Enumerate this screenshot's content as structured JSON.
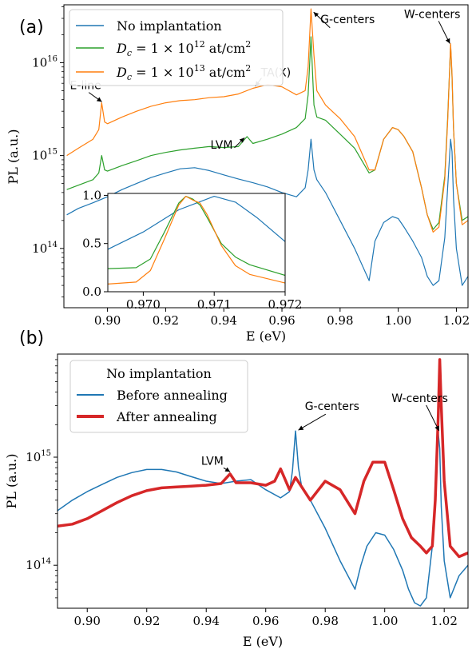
{
  "figure": {
    "panel_a_label": "(a)",
    "panel_b_label": "(b)"
  },
  "chart_data": [
    {
      "id": "a",
      "type": "line",
      "xlabel": "E (eV)",
      "ylabel": "PL (a.u.)",
      "xlim": [
        0.885,
        1.024
      ],
      "ylim": [
        23000000000000.0,
        4.2e+16
      ],
      "yscale": "log",
      "grid": false,
      "legend_position": "top-left",
      "xticks": [
        0.9,
        0.92,
        0.94,
        0.96,
        0.98,
        1.0,
        1.02
      ],
      "xtick_labels": [
        "0.90",
        "0.92",
        "0.94",
        "0.96",
        "0.98",
        "1.00",
        "1.02"
      ],
      "yticks": [
        100000000000000.0,
        1000000000000000.0,
        1e+16
      ],
      "ytick_labels": [
        [
          "10",
          "14"
        ],
        [
          "10",
          "15"
        ],
        [
          "10",
          "16"
        ]
      ],
      "series": [
        {
          "name": "No implantation",
          "color": "#1f77b4",
          "width": 1.2,
          "x": [
            0.886,
            0.89,
            0.895,
            0.9,
            0.905,
            0.91,
            0.915,
            0.92,
            0.925,
            0.93,
            0.935,
            0.94,
            0.945,
            0.95,
            0.955,
            0.96,
            0.965,
            0.968,
            0.969,
            0.97,
            0.971,
            0.972,
            0.975,
            0.98,
            0.985,
            0.99,
            0.992,
            0.995,
            0.998,
            1.0,
            1.002,
            1.005,
            1.008,
            1.01,
            1.012,
            1.014,
            1.016,
            1.017,
            1.018,
            1.0185,
            1.019,
            1.02,
            1.022,
            1.024
          ],
          "y": [
            230000000000000.0,
            270000000000000.0,
            310000000000000.0,
            360000000000000.0,
            430000000000000.0,
            500000000000000.0,
            580000000000000.0,
            650000000000000.0,
            720000000000000.0,
            740000000000000.0,
            690000000000000.0,
            620000000000000.0,
            560000000000000.0,
            510000000000000.0,
            460000000000000.0,
            400000000000000.0,
            360000000000000.0,
            450000000000000.0,
            700000000000000.0,
            1500000000000000.0,
            700000000000000.0,
            550000000000000.0,
            400000000000000.0,
            200000000000000.0,
            100000000000000.0,
            45000000000000.0,
            120000000000000.0,
            190000000000000.0,
            220000000000000.0,
            210000000000000.0,
            170000000000000.0,
            120000000000000.0,
            80000000000000.0,
            50000000000000.0,
            40000000000000.0,
            45000000000000.0,
            130000000000000.0,
            450000000000000.0,
            1500000000000000.0,
            1100000000000000.0,
            350000000000000.0,
            100000000000000.0,
            40000000000000.0,
            50000000000000.0
          ]
        },
        {
          "name": "D_c = 1 × 10^12 at/cm^2",
          "color": "#2ca02c",
          "width": 1.2,
          "x": [
            0.886,
            0.89,
            0.895,
            0.897,
            0.898,
            0.899,
            0.9,
            0.905,
            0.91,
            0.915,
            0.92,
            0.925,
            0.93,
            0.935,
            0.94,
            0.945,
            0.948,
            0.95,
            0.955,
            0.96,
            0.965,
            0.968,
            0.969,
            0.97,
            0.971,
            0.972,
            0.975,
            0.98,
            0.985,
            0.99,
            0.992,
            0.995,
            0.998,
            1.0,
            1.002,
            1.005,
            1.008,
            1.01,
            1.012,
            1.014,
            1.016,
            1.017,
            1.018,
            1.0185,
            1.019,
            1.02,
            1.022,
            1.024
          ],
          "y": [
            430000000000000.0,
            480000000000000.0,
            550000000000000.0,
            650000000000000.0,
            1000000000000000.0,
            700000000000000.0,
            680000000000000.0,
            780000000000000.0,
            880000000000000.0,
            1000000000000000.0,
            1080000000000000.0,
            1150000000000000.0,
            1200000000000000.0,
            1250000000000000.0,
            1220000000000000.0,
            1250000000000000.0,
            1600000000000000.0,
            1350000000000000.0,
            1500000000000000.0,
            1700000000000000.0,
            2000000000000000.0,
            2500000000000000.0,
            4500000000000000.0,
            1.9e+16,
            3500000000000000.0,
            2600000000000000.0,
            2400000000000000.0,
            1700000000000000.0,
            1200000000000000.0,
            650000000000000.0,
            700000000000000.0,
            1500000000000000.0,
            2000000000000000.0,
            1900000000000000.0,
            1600000000000000.0,
            1100000000000000.0,
            450000000000000.0,
            230000000000000.0,
            160000000000000.0,
            190000000000000.0,
            600000000000000.0,
            2500000000000000.0,
            1.55e+16,
            7000000000000000.0,
            2000000000000000.0,
            500000000000000.0,
            200000000000000.0,
            220000000000000.0
          ]
        },
        {
          "name": "D_c = 1 × 10^13 at/cm^2",
          "color": "#ff7f0e",
          "width": 1.2,
          "x": [
            0.886,
            0.89,
            0.895,
            0.897,
            0.898,
            0.899,
            0.9,
            0.905,
            0.91,
            0.915,
            0.92,
            0.925,
            0.93,
            0.935,
            0.94,
            0.945,
            0.95,
            0.955,
            0.96,
            0.965,
            0.968,
            0.969,
            0.97,
            0.971,
            0.972,
            0.975,
            0.98,
            0.985,
            0.99,
            0.992,
            0.995,
            0.998,
            1.0,
            1.002,
            1.005,
            1.008,
            1.01,
            1.012,
            1.014,
            1.016,
            1.017,
            1.018,
            1.0185,
            1.019,
            1.02,
            1.022,
            1.024
          ],
          "y": [
            1000000000000000.0,
            1200000000000000.0,
            1500000000000000.0,
            1900000000000000.0,
            3700000000000000.0,
            2300000000000000.0,
            2200000000000000.0,
            2600000000000000.0,
            3000000000000000.0,
            3400000000000000.0,
            3700000000000000.0,
            3900000000000000.0,
            4000000000000000.0,
            4200000000000000.0,
            4300000000000000.0,
            4600000000000000.0,
            5300000000000000.0,
            5800000000000000.0,
            5500000000000000.0,
            4500000000000000.0,
            5000000000000000.0,
            9000000000000000.0,
            3.8e+16,
            1.2e+16,
            5000000000000000.0,
            3500000000000000.0,
            2500000000000000.0,
            1600000000000000.0,
            700000000000000.0,
            700000000000000.0,
            1500000000000000.0,
            2000000000000000.0,
            1900000000000000.0,
            1600000000000000.0,
            1100000000000000.0,
            450000000000000.0,
            230000000000000.0,
            150000000000000.0,
            170000000000000.0,
            550000000000000.0,
            2300000000000000.0,
            1.6e+16,
            7500000000000000.0,
            2000000000000000.0,
            500000000000000.0,
            180000000000000.0,
            200000000000000.0
          ]
        }
      ],
      "annotations": [
        {
          "text": "E-line",
          "x": 0.8985,
          "y": 3700000000000000.0
        },
        {
          "text": "TA(X)",
          "x": 0.9505,
          "y": 5400000000000000.0
        },
        {
          "text": "LVM",
          "x": 0.9475,
          "y": 1600000000000000.0
        },
        {
          "text": "G-centers",
          "x": 0.9705,
          "y": 3.6e+16
        },
        {
          "text": "W-centers",
          "x": 1.018,
          "y": 1.55e+16
        }
      ],
      "inset": {
        "type": "line",
        "xlim": [
          0.9695,
          0.972
        ],
        "ylim": [
          0.0,
          1.02
        ],
        "xticks": [
          0.97,
          0.971,
          0.972
        ],
        "xtick_labels": [
          "0.970",
          "0.971",
          "0.972"
        ],
        "yticks": [
          0.0,
          0.5,
          1.0
        ],
        "ytick_labels": [
          "0.0",
          "0.5",
          "1.0"
        ],
        "series": [
          {
            "color": "#1f77b4",
            "x": [
              0.9695,
              0.97,
              0.9705,
              0.971,
              0.9713,
              0.9716,
              0.972
            ],
            "y": [
              0.44,
              0.62,
              0.85,
              0.99,
              0.93,
              0.77,
              0.52
            ]
          },
          {
            "color": "#2ca02c",
            "x": [
              0.9695,
              0.9699,
              0.9701,
              0.9703,
              0.9705,
              0.9706,
              0.9707,
              0.9708,
              0.9709,
              0.9711,
              0.9713,
              0.9715,
              0.972
            ],
            "y": [
              0.24,
              0.25,
              0.34,
              0.62,
              0.92,
              0.99,
              0.96,
              0.9,
              0.77,
              0.5,
              0.36,
              0.28,
              0.17
            ]
          },
          {
            "color": "#ff7f0e",
            "x": [
              0.9695,
              0.9699,
              0.9701,
              0.9703,
              0.9705,
              0.9706,
              0.9707,
              0.9708,
              0.9709,
              0.9711,
              0.9713,
              0.9715,
              0.972
            ],
            "y": [
              0.08,
              0.1,
              0.22,
              0.55,
              0.9,
              0.99,
              0.95,
              0.92,
              0.8,
              0.48,
              0.27,
              0.18,
              0.09
            ]
          }
        ]
      }
    },
    {
      "id": "b",
      "type": "line",
      "xlabel": "E (eV)",
      "ylabel": "PL (a.u.)",
      "xlim": [
        0.89,
        1.028
      ],
      "ylim": [
        40000000000000.0,
        9000000000000000.0
      ],
      "yscale": "log",
      "grid": false,
      "legend_position": "top-left",
      "legend_title": "No implantation",
      "xticks": [
        0.9,
        0.92,
        0.94,
        0.96,
        0.98,
        1.0,
        1.02
      ],
      "xtick_labels": [
        "0.90",
        "0.92",
        "0.94",
        "0.96",
        "0.98",
        "1.00",
        "1.02"
      ],
      "yticks": [
        100000000000000.0,
        1000000000000000.0
      ],
      "ytick_labels": [
        [
          "10",
          "14"
        ],
        [
          "10",
          "15"
        ]
      ],
      "series": [
        {
          "name": "Before annealing",
          "color": "#1f77b4",
          "width": 1.5,
          "x": [
            0.89,
            0.895,
            0.9,
            0.905,
            0.91,
            0.915,
            0.92,
            0.925,
            0.93,
            0.935,
            0.94,
            0.945,
            0.95,
            0.955,
            0.96,
            0.965,
            0.968,
            0.969,
            0.97,
            0.971,
            0.972,
            0.975,
            0.98,
            0.985,
            0.99,
            0.992,
            0.994,
            0.997,
            1.0,
            1.003,
            1.006,
            1.008,
            1.01,
            1.012,
            1.014,
            1.016,
            1.017,
            1.018,
            1.0185,
            1.019,
            1.02,
            1.022,
            1.025,
            1.028
          ],
          "y": [
            320000000000000.0,
            400000000000000.0,
            480000000000000.0,
            560000000000000.0,
            650000000000000.0,
            720000000000000.0,
            770000000000000.0,
            770000000000000.0,
            730000000000000.0,
            660000000000000.0,
            600000000000000.0,
            570000000000000.0,
            600000000000000.0,
            620000000000000.0,
            500000000000000.0,
            420000000000000.0,
            480000000000000.0,
            750000000000000.0,
            1750000000000000.0,
            800000000000000.0,
            550000000000000.0,
            400000000000000.0,
            220000000000000.0,
            110000000000000.0,
            60000000000000.0,
            100000000000000.0,
            150000000000000.0,
            200000000000000.0,
            190000000000000.0,
            140000000000000.0,
            90000000000000.0,
            60000000000000.0,
            45000000000000.0,
            42000000000000.0,
            50000000000000.0,
            150000000000000.0,
            450000000000000.0,
            1650000000000000.0,
            1200000000000000.0,
            350000000000000.0,
            110000000000000.0,
            50000000000000.0,
            80000000000000.0,
            100000000000000.0
          ]
        },
        {
          "name": "After annealing",
          "color": "#d62728",
          "width": 3.5,
          "x": [
            0.89,
            0.895,
            0.9,
            0.905,
            0.91,
            0.915,
            0.92,
            0.925,
            0.93,
            0.935,
            0.94,
            0.945,
            0.948,
            0.95,
            0.955,
            0.96,
            0.963,
            0.965,
            0.968,
            0.97,
            0.975,
            0.98,
            0.985,
            0.99,
            0.993,
            0.996,
            1.0,
            1.003,
            1.006,
            1.009,
            1.012,
            1.014,
            1.016,
            1.017,
            1.018,
            1.0185,
            1.019,
            1.02,
            1.022,
            1.025,
            1.028
          ],
          "y": [
            230000000000000.0,
            240000000000000.0,
            270000000000000.0,
            320000000000000.0,
            380000000000000.0,
            440000000000000.0,
            490000000000000.0,
            520000000000000.0,
            530000000000000.0,
            540000000000000.0,
            550000000000000.0,
            570000000000000.0,
            700000000000000.0,
            580000000000000.0,
            580000000000000.0,
            550000000000000.0,
            600000000000000.0,
            780000000000000.0,
            500000000000000.0,
            650000000000000.0,
            400000000000000.0,
            600000000000000.0,
            500000000000000.0,
            300000000000000.0,
            600000000000000.0,
            900000000000000.0,
            900000000000000.0,
            500000000000000.0,
            270000000000000.0,
            180000000000000.0,
            150000000000000.0,
            130000000000000.0,
            150000000000000.0,
            400000000000000.0,
            2500000000000000.0,
            8000000000000000.0,
            3000000000000000.0,
            600000000000000.0,
            150000000000000.0,
            120000000000000.0,
            130000000000000.0
          ]
        }
      ],
      "annotations": [
        {
          "text": "LVM",
          "x": 0.9485,
          "y": 720000000000000.0
        },
        {
          "text": "G-centers",
          "x": 0.9705,
          "y": 1750000000000000.0
        },
        {
          "text": "W-centers",
          "x": 1.0185,
          "y": 1700000000000000.0
        }
      ]
    }
  ]
}
